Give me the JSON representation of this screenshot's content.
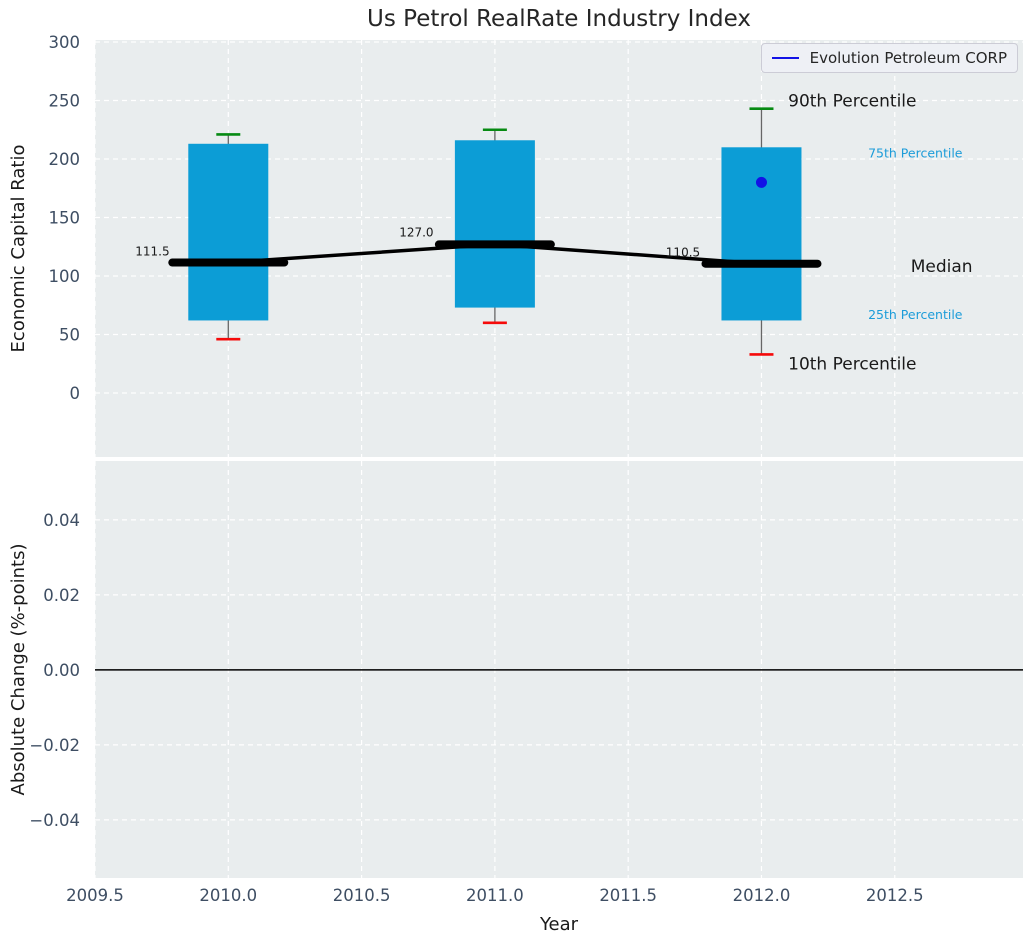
{
  "title": "Us Petrol RealRate Industry Index",
  "legend": {
    "label": "Evolution Petroleum CORP",
    "line_color": "#1212e6"
  },
  "colors": {
    "bar": "#0c9dd6",
    "median_line": "#000000",
    "p90_cap": "#068a12",
    "p10_cap": "#f50a0a",
    "whisker": "#666666",
    "company": "#1212e6",
    "axes_bg": "#e9edee",
    "grid": "#ffffff",
    "tick_label": "#3e4e63",
    "text_dark": "#1a1a1a",
    "blue_label": "#1b9cd9",
    "zero_line": "#000000"
  },
  "chart_data": [
    {
      "type": "percentile_bar",
      "ylabel": "Economic Capital Ratio",
      "ylim": [
        -54.7,
        301.7
      ],
      "ytick_values": [
        300,
        250,
        200,
        150,
        100,
        50,
        0
      ],
      "ytick_labels": [
        "300",
        "250",
        "200",
        "150",
        "100",
        "50",
        "0"
      ],
      "x": [
        2010,
        2011,
        2012
      ],
      "bar_width_years": 0.3,
      "series": {
        "p90": [
          221,
          225,
          243
        ],
        "p75": [
          213,
          216,
          210
        ],
        "median": [
          111.5,
          127.0,
          110.5
        ],
        "p25": [
          62,
          73,
          62
        ],
        "p10": [
          46,
          60,
          33
        ],
        "company": [
          null,
          null,
          180
        ]
      },
      "company_name": "Evolution Petroleum CORP",
      "median_value_labels": [
        {
          "text": "111.5",
          "x": 2009.78,
          "y": 121
        },
        {
          "text": "127.0",
          "x": 2010.77,
          "y": 137
        },
        {
          "text": "110.5",
          "x": 2011.77,
          "y": 120
        }
      ],
      "percentile_annotations": [
        {
          "text": "90th Percentile",
          "x": 2012.1,
          "y": 250,
          "style": "dark"
        },
        {
          "text": "75th Percentile",
          "x": 2012.4,
          "y": 205,
          "style": "blue"
        },
        {
          "text": "Median",
          "x": 2012.56,
          "y": 108.5,
          "style": "dark"
        },
        {
          "text": "25th Percentile",
          "x": 2012.4,
          "y": 67,
          "style": "blue"
        },
        {
          "text": "10th Percentile",
          "x": 2012.1,
          "y": 25,
          "style": "dark"
        }
      ],
      "grid": true,
      "legend_position": "upper right"
    },
    {
      "type": "line",
      "xlabel": "Year",
      "ylabel": "Absolute Change (%-points)",
      "ylim": [
        -0.0555,
        0.0557
      ],
      "xlim": [
        2009.5,
        2012.981
      ],
      "ytick_values": [
        0.04,
        0.02,
        0.0,
        -0.02,
        -0.04
      ],
      "ytick_labels": [
        "0.04",
        "0.02",
        "0.00",
        "−0.02",
        "−0.04"
      ],
      "xtick_values": [
        2009.5,
        2010.0,
        2010.5,
        2011.0,
        2011.5,
        2012.0,
        2012.5
      ],
      "xtick_labels": [
        "2009.5",
        "2010.0",
        "2010.5",
        "2011.0",
        "2011.5",
        "2012.0",
        "2012.5"
      ],
      "zero_line": 0.0,
      "series": [],
      "grid": true
    }
  ]
}
